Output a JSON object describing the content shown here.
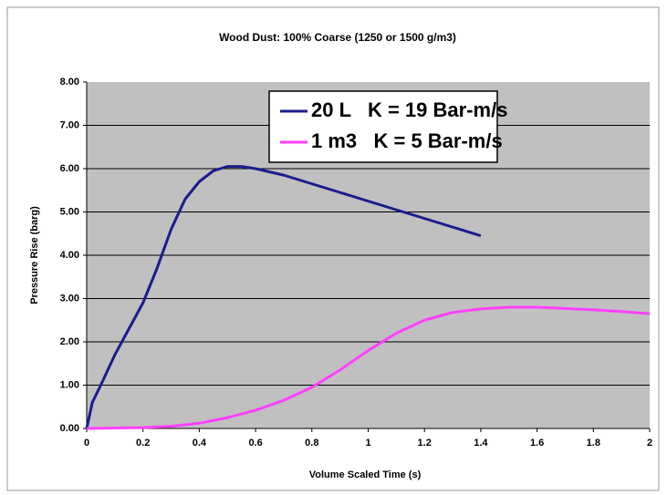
{
  "chart_data": {
    "type": "line",
    "title": "Wood Dust: 100% Coarse (1250 or 1500 g/m3)",
    "xlabel": "Volume Scaled Time (s)",
    "ylabel": "Pressure Rise (barg)",
    "xlim": [
      0,
      2
    ],
    "ylim": [
      0,
      8
    ],
    "xticks": [
      0,
      0.2,
      0.4,
      0.6,
      0.8,
      1,
      1.2,
      1.4,
      1.6,
      1.8,
      2
    ],
    "yticks": [
      {
        "value": 0,
        "label": "0.00"
      },
      {
        "value": 1,
        "label": "1.00"
      },
      {
        "value": 2,
        "label": "2.00"
      },
      {
        "value": 3,
        "label": "3.00"
      },
      {
        "value": 4,
        "label": "4.00"
      },
      {
        "value": 5,
        "label": "5.00"
      },
      {
        "value": 6,
        "label": "6.00"
      },
      {
        "value": 7,
        "label": "7.00"
      },
      {
        "value": 8,
        "label": "8.00"
      }
    ],
    "grid": true,
    "plot_background": "#c0c0c0",
    "series": [
      {
        "name": "20 L   K = 19 Bar-m/s",
        "color": "#1c1c8e",
        "x": [
          0,
          0.02,
          0.05,
          0.1,
          0.15,
          0.2,
          0.25,
          0.3,
          0.35,
          0.4,
          0.45,
          0.5,
          0.55,
          0.6,
          0.7,
          0.8,
          0.9,
          1.0,
          1.1,
          1.2,
          1.3,
          1.4
        ],
        "values": [
          0,
          0.6,
          1.0,
          1.7,
          2.3,
          2.9,
          3.7,
          4.6,
          5.3,
          5.7,
          5.95,
          6.05,
          6.05,
          6.0,
          5.85,
          5.65,
          5.45,
          5.25,
          5.05,
          4.85,
          4.65,
          4.45
        ]
      },
      {
        "name": "1 m3   K = 5 Bar-m/s",
        "color": "#ff40ff",
        "x": [
          0,
          0.2,
          0.3,
          0.4,
          0.5,
          0.6,
          0.7,
          0.8,
          0.9,
          1.0,
          1.1,
          1.2,
          1.3,
          1.4,
          1.5,
          1.6,
          1.7,
          1.8,
          1.9,
          2.0
        ],
        "values": [
          0,
          0.02,
          0.05,
          0.12,
          0.25,
          0.42,
          0.65,
          0.95,
          1.35,
          1.8,
          2.2,
          2.5,
          2.68,
          2.76,
          2.8,
          2.8,
          2.77,
          2.74,
          2.7,
          2.65
        ]
      }
    ]
  }
}
